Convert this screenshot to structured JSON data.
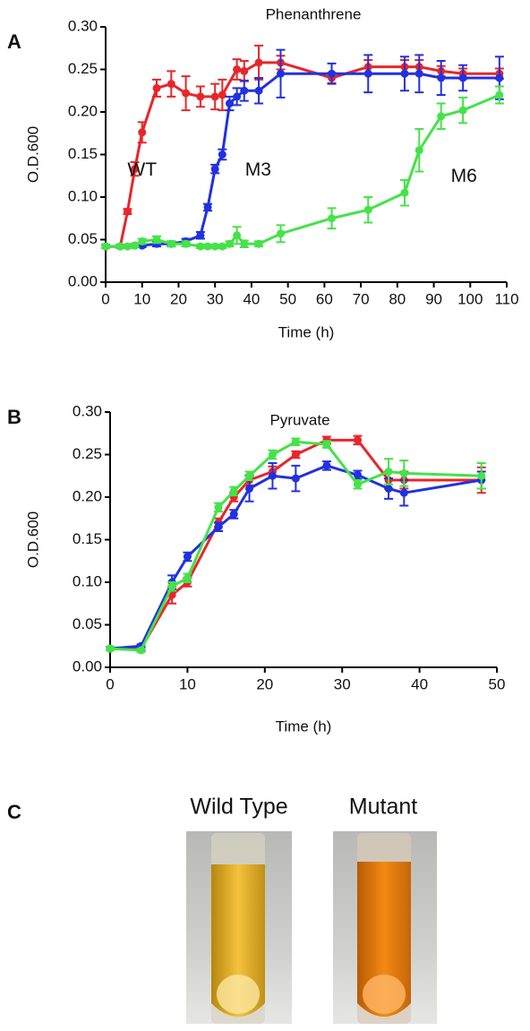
{
  "chart_data": [
    {
      "type": "line",
      "panel": "A",
      "title": "Phenanthrene",
      "xlabel": "Time (h)",
      "ylabel": "O.D.600",
      "xlim": [
        0,
        110
      ],
      "xticks": [
        0,
        10,
        20,
        30,
        40,
        50,
        60,
        70,
        80,
        90,
        100,
        110
      ],
      "ylim": [
        0,
        0.3
      ],
      "yticks": [
        {
          "value": 0,
          "label": "0.00"
        },
        {
          "value": 0.05,
          "label": "0.05"
        },
        {
          "value": 0.1,
          "label": "0.10"
        },
        {
          "value": 0.15,
          "label": "0.15"
        },
        {
          "value": 0.2,
          "label": "0.20"
        },
        {
          "value": 0.25,
          "label": "0.25"
        },
        {
          "value": 0.3,
          "label": "0.30"
        }
      ],
      "series": [
        {
          "name": "WT",
          "color": "#e8262a",
          "x": [
            0,
            4,
            6,
            8,
            10,
            14,
            18,
            22,
            26,
            30,
            32,
            36,
            38,
            42,
            48,
            62,
            72,
            82,
            86,
            92,
            98,
            108
          ],
          "values": [
            0.042,
            0.042,
            0.083,
            0.133,
            0.176,
            0.228,
            0.233,
            0.222,
            0.218,
            0.218,
            0.22,
            0.25,
            0.248,
            0.258,
            0.258,
            0.24,
            0.253,
            0.253,
            0.253,
            0.248,
            0.245,
            0.245
          ],
          "errors": [
            0.002,
            0.002,
            0.003,
            0.008,
            0.012,
            0.01,
            0.015,
            0.02,
            0.012,
            0.015,
            0.018,
            0.012,
            0.012,
            0.02,
            0.008,
            0.006,
            0.008,
            0.008,
            0.008,
            0.006,
            0.006,
            0.006
          ]
        },
        {
          "name": "M3",
          "color": "#2131e0",
          "x": [
            0,
            4,
            8,
            10,
            14,
            18,
            22,
            26,
            28,
            30,
            32,
            34,
            36,
            38,
            42,
            48,
            62,
            72,
            82,
            86,
            92,
            98,
            108
          ],
          "values": [
            0.042,
            0.042,
            0.043,
            0.043,
            0.045,
            0.045,
            0.048,
            0.055,
            0.088,
            0.133,
            0.15,
            0.21,
            0.218,
            0.225,
            0.225,
            0.245,
            0.245,
            0.245,
            0.245,
            0.245,
            0.24,
            0.24,
            0.24
          ],
          "errors": [
            0.002,
            0.002,
            0.002,
            0.002,
            0.003,
            0.003,
            0.003,
            0.004,
            0.004,
            0.005,
            0.006,
            0.008,
            0.01,
            0.012,
            0.015,
            0.028,
            0.012,
            0.022,
            0.02,
            0.022,
            0.02,
            0.015,
            0.025
          ]
        },
        {
          "name": "M6",
          "color": "#45e249",
          "x": [
            0,
            4,
            6,
            8,
            10,
            14,
            18,
            22,
            26,
            28,
            30,
            32,
            34,
            36,
            38,
            42,
            48,
            62,
            72,
            82,
            86,
            92,
            98,
            108
          ],
          "values": [
            0.042,
            0.042,
            0.042,
            0.043,
            0.048,
            0.05,
            0.045,
            0.045,
            0.042,
            0.042,
            0.042,
            0.042,
            0.045,
            0.055,
            0.045,
            0.045,
            0.057,
            0.075,
            0.085,
            0.105,
            0.155,
            0.195,
            0.202,
            0.22
          ],
          "errors": [
            0.002,
            0.002,
            0.002,
            0.002,
            0.003,
            0.004,
            0.003,
            0.003,
            0.002,
            0.002,
            0.002,
            0.002,
            0.003,
            0.01,
            0.004,
            0.003,
            0.01,
            0.012,
            0.015,
            0.015,
            0.025,
            0.015,
            0.015,
            0.01
          ]
        }
      ]
    },
    {
      "type": "line",
      "panel": "B",
      "title": "Pyruvate",
      "xlabel": "Time (h)",
      "ylabel": "O.D.600",
      "xlim": [
        0,
        50
      ],
      "xticks": [
        0,
        10,
        20,
        30,
        40,
        50
      ],
      "ylim": [
        0,
        0.3
      ],
      "yticks": [
        {
          "value": 0,
          "label": "0.00"
        },
        {
          "value": 0.05,
          "label": "0.05"
        },
        {
          "value": 0.1,
          "label": "0.10"
        },
        {
          "value": 0.15,
          "label": "0.15"
        },
        {
          "value": 0.2,
          "label": "0.20"
        },
        {
          "value": 0.25,
          "label": "0.25"
        },
        {
          "value": 0.3,
          "label": "0.30"
        }
      ],
      "series": [
        {
          "color": "#e8262a",
          "x": [
            0,
            4,
            8,
            10,
            14,
            16,
            18,
            21,
            24,
            28,
            32,
            36,
            38,
            48
          ],
          "values": [
            0.022,
            0.022,
            0.085,
            0.1,
            0.17,
            0.2,
            0.22,
            0.23,
            0.25,
            0.267,
            0.267,
            0.22,
            0.22,
            0.22
          ],
          "errors": [
            0.002,
            0.002,
            0.01,
            0.005,
            0.005,
            0.005,
            0.006,
            0.006,
            0.004,
            0.004,
            0.005,
            0.01,
            0.01,
            0.015
          ]
        },
        {
          "color": "#2131e0",
          "x": [
            0,
            4,
            8,
            10,
            14,
            16,
            18,
            21,
            24,
            28,
            32,
            36,
            38,
            48
          ],
          "values": [
            0.022,
            0.025,
            0.1,
            0.13,
            0.165,
            0.18,
            0.21,
            0.225,
            0.222,
            0.237,
            0.226,
            0.21,
            0.205,
            0.22
          ],
          "errors": [
            0.002,
            0.002,
            0.008,
            0.005,
            0.005,
            0.005,
            0.015,
            0.015,
            0.015,
            0.005,
            0.005,
            0.012,
            0.015,
            0.01
          ]
        },
        {
          "color": "#45e249",
          "x": [
            0,
            4,
            8,
            10,
            14,
            16,
            18,
            21,
            24,
            28,
            32,
            36,
            38,
            48
          ],
          "values": [
            0.022,
            0.02,
            0.095,
            0.105,
            0.188,
            0.207,
            0.225,
            0.25,
            0.265,
            0.262,
            0.215,
            0.23,
            0.228,
            0.225
          ],
          "errors": [
            0.002,
            0.002,
            0.005,
            0.005,
            0.005,
            0.005,
            0.005,
            0.005,
            0.004,
            0.004,
            0.005,
            0.015,
            0.015,
            0.015
          ]
        }
      ]
    }
  ],
  "photo_panel": {
    "panel": "C",
    "labels": [
      "Wild Type",
      "Mutant"
    ]
  }
}
